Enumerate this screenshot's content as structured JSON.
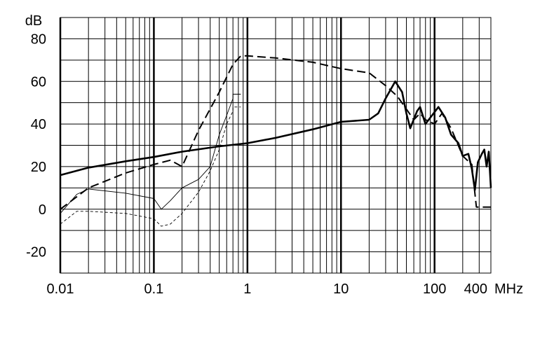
{
  "chart_data": {
    "type": "line",
    "y_label": "dB",
    "x_label": "MHz",
    "xscale": "log",
    "xlim": [
      0.01,
      400
    ],
    "xticks": [
      0.01,
      0.1,
      1,
      10,
      100,
      400
    ],
    "ylim": [
      -30,
      90
    ],
    "yticks": [
      -20,
      0,
      20,
      40,
      60,
      80
    ],
    "yminor_step": 10,
    "grid": true,
    "series": [
      {
        "color": "#000000",
        "style": "solid",
        "width": 2.6,
        "x": [
          0.01,
          0.02,
          0.05,
          0.1,
          0.2,
          0.5,
          1,
          2,
          5,
          10,
          20,
          25,
          30,
          38,
          45,
          50,
          55,
          65,
          70,
          80,
          90,
          110,
          130,
          150,
          180,
          200,
          230,
          250,
          270,
          290,
          320,
          340,
          360,
          380,
          400
        ],
        "values": [
          16,
          19.5,
          22.5,
          24.5,
          27,
          29.5,
          31,
          33.5,
          37.5,
          41,
          42,
          45,
          52,
          60,
          55,
          45,
          38,
          46,
          48,
          40,
          43,
          48,
          43,
          35,
          31,
          25,
          26,
          19,
          9,
          22,
          26,
          28,
          20,
          27,
          10
        ]
      },
      {
        "color": "#000000",
        "style": "dashed",
        "width": 2,
        "x": [
          0.01,
          0.02,
          0.05,
          0.1,
          0.15,
          0.2,
          0.3,
          0.5,
          0.7,
          0.85,
          1,
          2,
          5,
          10,
          20,
          30,
          40,
          50,
          60,
          70,
          80,
          100,
          120,
          150,
          200,
          250,
          280,
          400
        ],
        "values": [
          0,
          10,
          17,
          21,
          23,
          20,
          37,
          55,
          68,
          72,
          72,
          71,
          69,
          66,
          64,
          58,
          53,
          47,
          42,
          45,
          42,
          40,
          45,
          38,
          25,
          21,
          1,
          1
        ]
      },
      {
        "color": "#000000",
        "style": "solid",
        "width": 0.9,
        "x": [
          0.01,
          0.015,
          0.02,
          0.05,
          0.1,
          0.12,
          0.15,
          0.2,
          0.3,
          0.4,
          0.5,
          0.6,
          0.7,
          0.7,
          0.85
        ],
        "values": [
          -2,
          7,
          9.5,
          7.5,
          5,
          0,
          4,
          10,
          14,
          20,
          35,
          44,
          52,
          54,
          54
        ]
      },
      {
        "color": "#000000",
        "style": "dashed",
        "width": 0.9,
        "x": [
          0.01,
          0.015,
          0.02,
          0.05,
          0.1,
          0.12,
          0.15,
          0.2,
          0.3,
          0.4,
          0.5,
          0.6,
          0.7,
          0.7,
          0.85
        ],
        "values": [
          -7,
          -1,
          -1,
          -2,
          -4.5,
          -8,
          -7,
          -2,
          8,
          18,
          28,
          40,
          46,
          48,
          48
        ]
      }
    ]
  }
}
